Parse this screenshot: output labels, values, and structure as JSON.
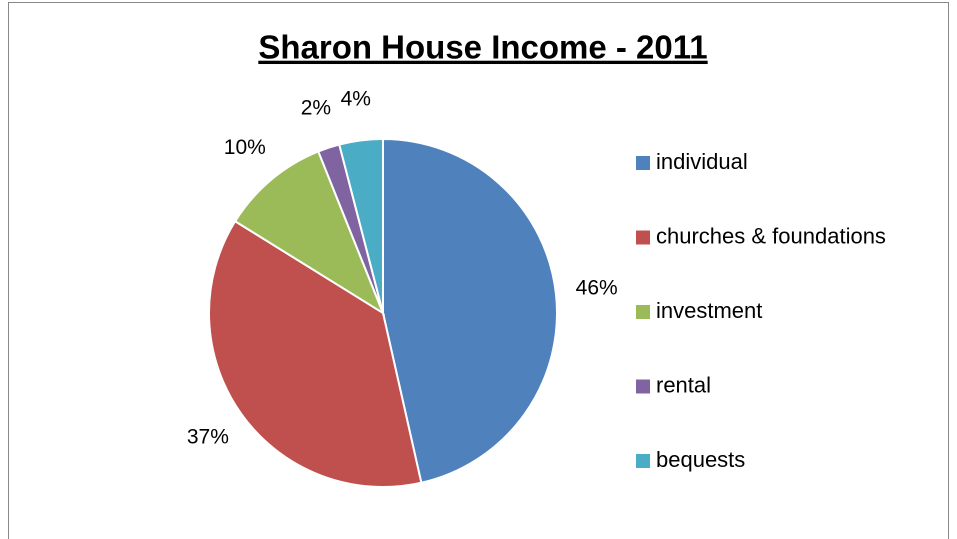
{
  "chart_data": {
    "type": "pie",
    "title": "Sharon House Income - 2011",
    "categories": [
      "individual",
      "churches & foundations",
      "investment",
      "rental",
      "bequests"
    ],
    "values": [
      46,
      37,
      10,
      2,
      4
    ],
    "value_labels": [
      "46%",
      "37%",
      "10%",
      "2%",
      "4%"
    ],
    "colors": [
      "#4f81bd",
      "#c0504d",
      "#9bbb59",
      "#8064a2",
      "#4bacc6"
    ],
    "legend": "right"
  }
}
